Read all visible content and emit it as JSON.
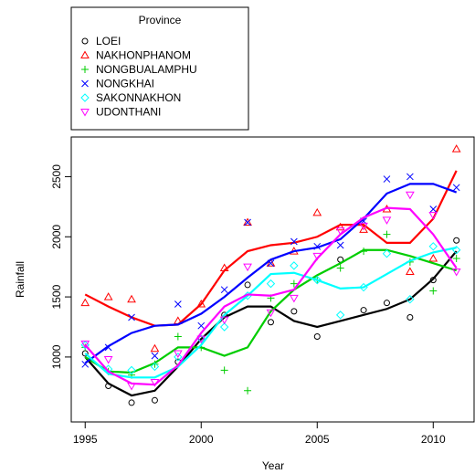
{
  "chart_data": {
    "type": "scatter",
    "x_label": "Year",
    "y_label": "Rainfall",
    "x": [
      1995,
      1996,
      1997,
      1998,
      1999,
      2000,
      2001,
      2002,
      2003,
      2004,
      2005,
      2006,
      2007,
      2008,
      2009,
      2010,
      2011
    ],
    "xlim": [
      1994.4,
      2011.8
    ],
    "xticks": [
      1995,
      2000,
      2005,
      2010
    ],
    "ylim": [
      460,
      2830
    ],
    "yticks": [
      1000,
      1500,
      2000,
      2500
    ],
    "grid": false,
    "legend_title": "Province",
    "legend_position": "top-left",
    "series": [
      {
        "name": "LOEI",
        "color": "#000000",
        "marker": "circle",
        "values": [
          1030,
          760,
          620,
          640,
          960,
          1150,
          1350,
          1600,
          1290,
          1380,
          1170,
          1810,
          1390,
          1450,
          1330,
          1640,
          1970
        ],
        "smooth": [
          1000,
          780,
          680,
          720,
          920,
          1150,
          1330,
          1420,
          1420,
          1300,
          1250,
          1300,
          1350,
          1400,
          1480,
          1650,
          1880
        ]
      },
      {
        "name": "NAKHONPHANOM",
        "color": "#ff0000",
        "marker": "triangle-up",
        "values": [
          1450,
          1500,
          1480,
          1070,
          1300,
          1440,
          1740,
          2120,
          1780,
          1880,
          2200,
          2080,
          2060,
          2230,
          1710,
          1820,
          2730
        ],
        "smooth": [
          1520,
          1420,
          1330,
          1260,
          1270,
          1440,
          1720,
          1880,
          1930,
          1950,
          2000,
          2100,
          2100,
          1950,
          1950,
          2150,
          2550
        ]
      },
      {
        "name": "NONGBUALAMPHU",
        "color": "#00cd00",
        "marker": "plus",
        "values": [
          1080,
          880,
          850,
          940,
          1170,
          1080,
          890,
          720,
          1490,
          1610,
          1640,
          1740,
          1880,
          2020,
          1790,
          1550,
          1820
        ],
        "smooth": [
          1000,
          880,
          870,
          950,
          1080,
          1080,
          1010,
          1080,
          1380,
          1560,
          1680,
          1780,
          1890,
          1890,
          1840,
          1780,
          1720
        ]
      },
      {
        "name": "NONGKHAI",
        "color": "#0000ff",
        "marker": "x",
        "values": [
          940,
          1080,
          1330,
          1010,
          1440,
          1260,
          1560,
          2120,
          1780,
          1960,
          1920,
          1930,
          2130,
          2480,
          2500,
          2230,
          2410
        ],
        "smooth": [
          950,
          1090,
          1200,
          1260,
          1270,
          1360,
          1500,
          1660,
          1810,
          1880,
          1910,
          1980,
          2150,
          2360,
          2440,
          2440,
          2370
        ]
      },
      {
        "name": "SAKONNAKHON",
        "color": "#00ffff",
        "marker": "diamond",
        "values": [
          1100,
          900,
          890,
          920,
          1000,
          1150,
          1250,
          1510,
          1610,
          1760,
          1640,
          1350,
          1580,
          1860,
          1480,
          1920,
          1890
        ],
        "smooth": [
          1030,
          860,
          830,
          830,
          920,
          1100,
          1350,
          1510,
          1690,
          1700,
          1640,
          1570,
          1580,
          1690,
          1800,
          1870,
          1910
        ]
      },
      {
        "name": "UDONTHANI",
        "color": "#ff00ff",
        "marker": "triangle-down",
        "values": [
          1110,
          980,
          760,
          790,
          1030,
          1150,
          1310,
          1750,
          1370,
          1490,
          1840,
          2050,
          2090,
          2140,
          2350,
          2180,
          1710
        ],
        "smooth": [
          1100,
          880,
          780,
          770,
          930,
          1200,
          1420,
          1520,
          1510,
          1560,
          1820,
          2020,
          2160,
          2240,
          2230,
          2020,
          1740
        ]
      }
    ]
  }
}
